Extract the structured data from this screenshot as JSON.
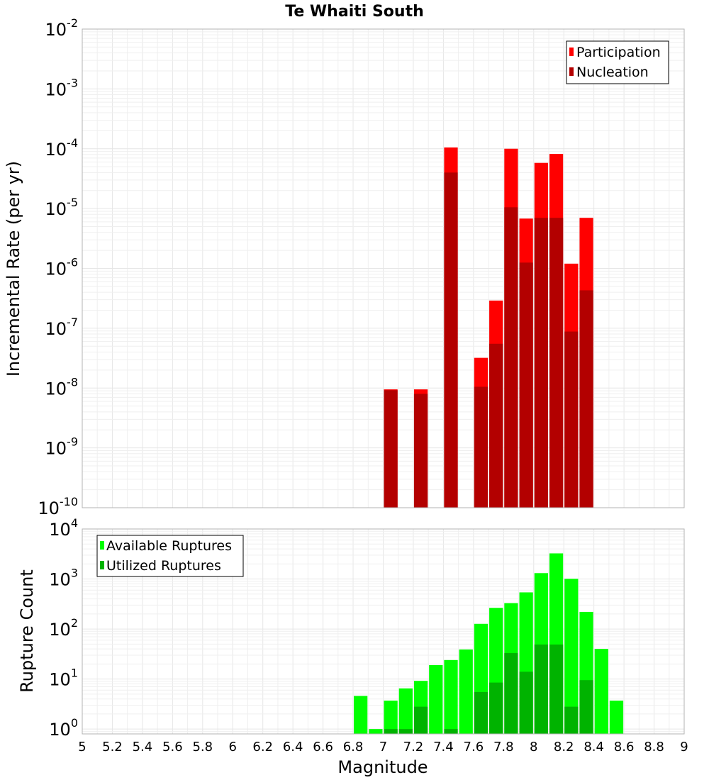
{
  "title": "Te Whaiti South",
  "xlabel": "Magnitude",
  "x_ticks": [
    "5",
    "5.2",
    "5.4",
    "5.6",
    "5.8",
    "6",
    "6.2",
    "6.4",
    "6.6",
    "6.8",
    "7",
    "7.2",
    "7.4",
    "7.6",
    "7.8",
    "8",
    "8.2",
    "8.4",
    "8.6",
    "8.8",
    "9"
  ],
  "chart_data": [
    {
      "type": "bar",
      "ylabel": "Incremental Rate (per yr)",
      "xlim": [
        5,
        9
      ],
      "ylim": [
        1e-10,
        0.01
      ],
      "yscale": "log",
      "grid": true,
      "legend_position": "top-right",
      "y_tick_exponents": [
        "-2",
        "-3",
        "-4",
        "-5",
        "-6",
        "-7",
        "-8",
        "-9",
        "-10"
      ],
      "y_tick_base": "10",
      "series": [
        {
          "name": "Participation",
          "color": "#ff0000",
          "points": [
            {
              "x": 7.05,
              "y": 9.5e-09
            },
            {
              "x": 7.25,
              "y": 9.5e-09
            },
            {
              "x": 7.45,
              "y": 0.000105
            },
            {
              "x": 7.65,
              "y": 3.2e-08
            },
            {
              "x": 7.75,
              "y": 2.9e-07
            },
            {
              "x": 7.85,
              "y": 0.0001
            },
            {
              "x": 7.95,
              "y": 6.8e-06
            },
            {
              "x": 8.05,
              "y": 5.8e-05
            },
            {
              "x": 8.15,
              "y": 8.2e-05
            },
            {
              "x": 8.25,
              "y": 1.2e-06
            },
            {
              "x": 8.35,
              "y": 7e-06
            }
          ]
        },
        {
          "name": "Nucleation",
          "color": "#b30000",
          "points": [
            {
              "x": 7.05,
              "y": 9.2e-09
            },
            {
              "x": 7.25,
              "y": 8e-09
            },
            {
              "x": 7.45,
              "y": 4e-05
            },
            {
              "x": 7.65,
              "y": 1.05e-08
            },
            {
              "x": 7.75,
              "y": 5.5e-08
            },
            {
              "x": 7.85,
              "y": 1.05e-05
            },
            {
              "x": 7.95,
              "y": 1.25e-06
            },
            {
              "x": 8.05,
              "y": 7e-06
            },
            {
              "x": 8.15,
              "y": 7e-06
            },
            {
              "x": 8.25,
              "y": 8.8e-08
            },
            {
              "x": 8.35,
              "y": 4.3e-07
            }
          ]
        }
      ]
    },
    {
      "type": "bar",
      "ylabel": "Rupture Count",
      "xlim": [
        5,
        9
      ],
      "ylim": [
        0.8,
        10000.0
      ],
      "yscale": "log",
      "grid": true,
      "legend_position": "top-left",
      "y_tick_exponents": [
        "4",
        "3",
        "2",
        "1",
        "0"
      ],
      "y_tick_base": "10",
      "series": [
        {
          "name": "Available Ruptures",
          "color": "#00ff00",
          "points": [
            {
              "x": 6.85,
              "y": 4.6
            },
            {
              "x": 6.95,
              "y": 1
            },
            {
              "x": 7.05,
              "y": 3.7
            },
            {
              "x": 7.15,
              "y": 6.5
            },
            {
              "x": 7.25,
              "y": 9.2
            },
            {
              "x": 7.35,
              "y": 19
            },
            {
              "x": 7.45,
              "y": 24
            },
            {
              "x": 7.55,
              "y": 39
            },
            {
              "x": 7.65,
              "y": 127
            },
            {
              "x": 7.75,
              "y": 265
            },
            {
              "x": 7.85,
              "y": 330
            },
            {
              "x": 7.95,
              "y": 540
            },
            {
              "x": 8.05,
              "y": 1310
            },
            {
              "x": 8.15,
              "y": 3250
            },
            {
              "x": 8.25,
              "y": 1010
            },
            {
              "x": 8.35,
              "y": 220
            },
            {
              "x": 8.45,
              "y": 40
            },
            {
              "x": 8.55,
              "y": 3.7
            }
          ]
        },
        {
          "name": "Utilized Ruptures",
          "color": "#00b300",
          "points": [
            {
              "x": 7.05,
              "y": 1
            },
            {
              "x": 7.15,
              "y": 1
            },
            {
              "x": 7.25,
              "y": 2.8
            },
            {
              "x": 7.45,
              "y": 1
            },
            {
              "x": 7.65,
              "y": 5.5
            },
            {
              "x": 7.75,
              "y": 8.5
            },
            {
              "x": 7.85,
              "y": 33
            },
            {
              "x": 7.95,
              "y": 14
            },
            {
              "x": 8.05,
              "y": 49
            },
            {
              "x": 8.15,
              "y": 49
            },
            {
              "x": 8.25,
              "y": 2.8
            },
            {
              "x": 8.35,
              "y": 9.5
            }
          ]
        }
      ]
    }
  ]
}
